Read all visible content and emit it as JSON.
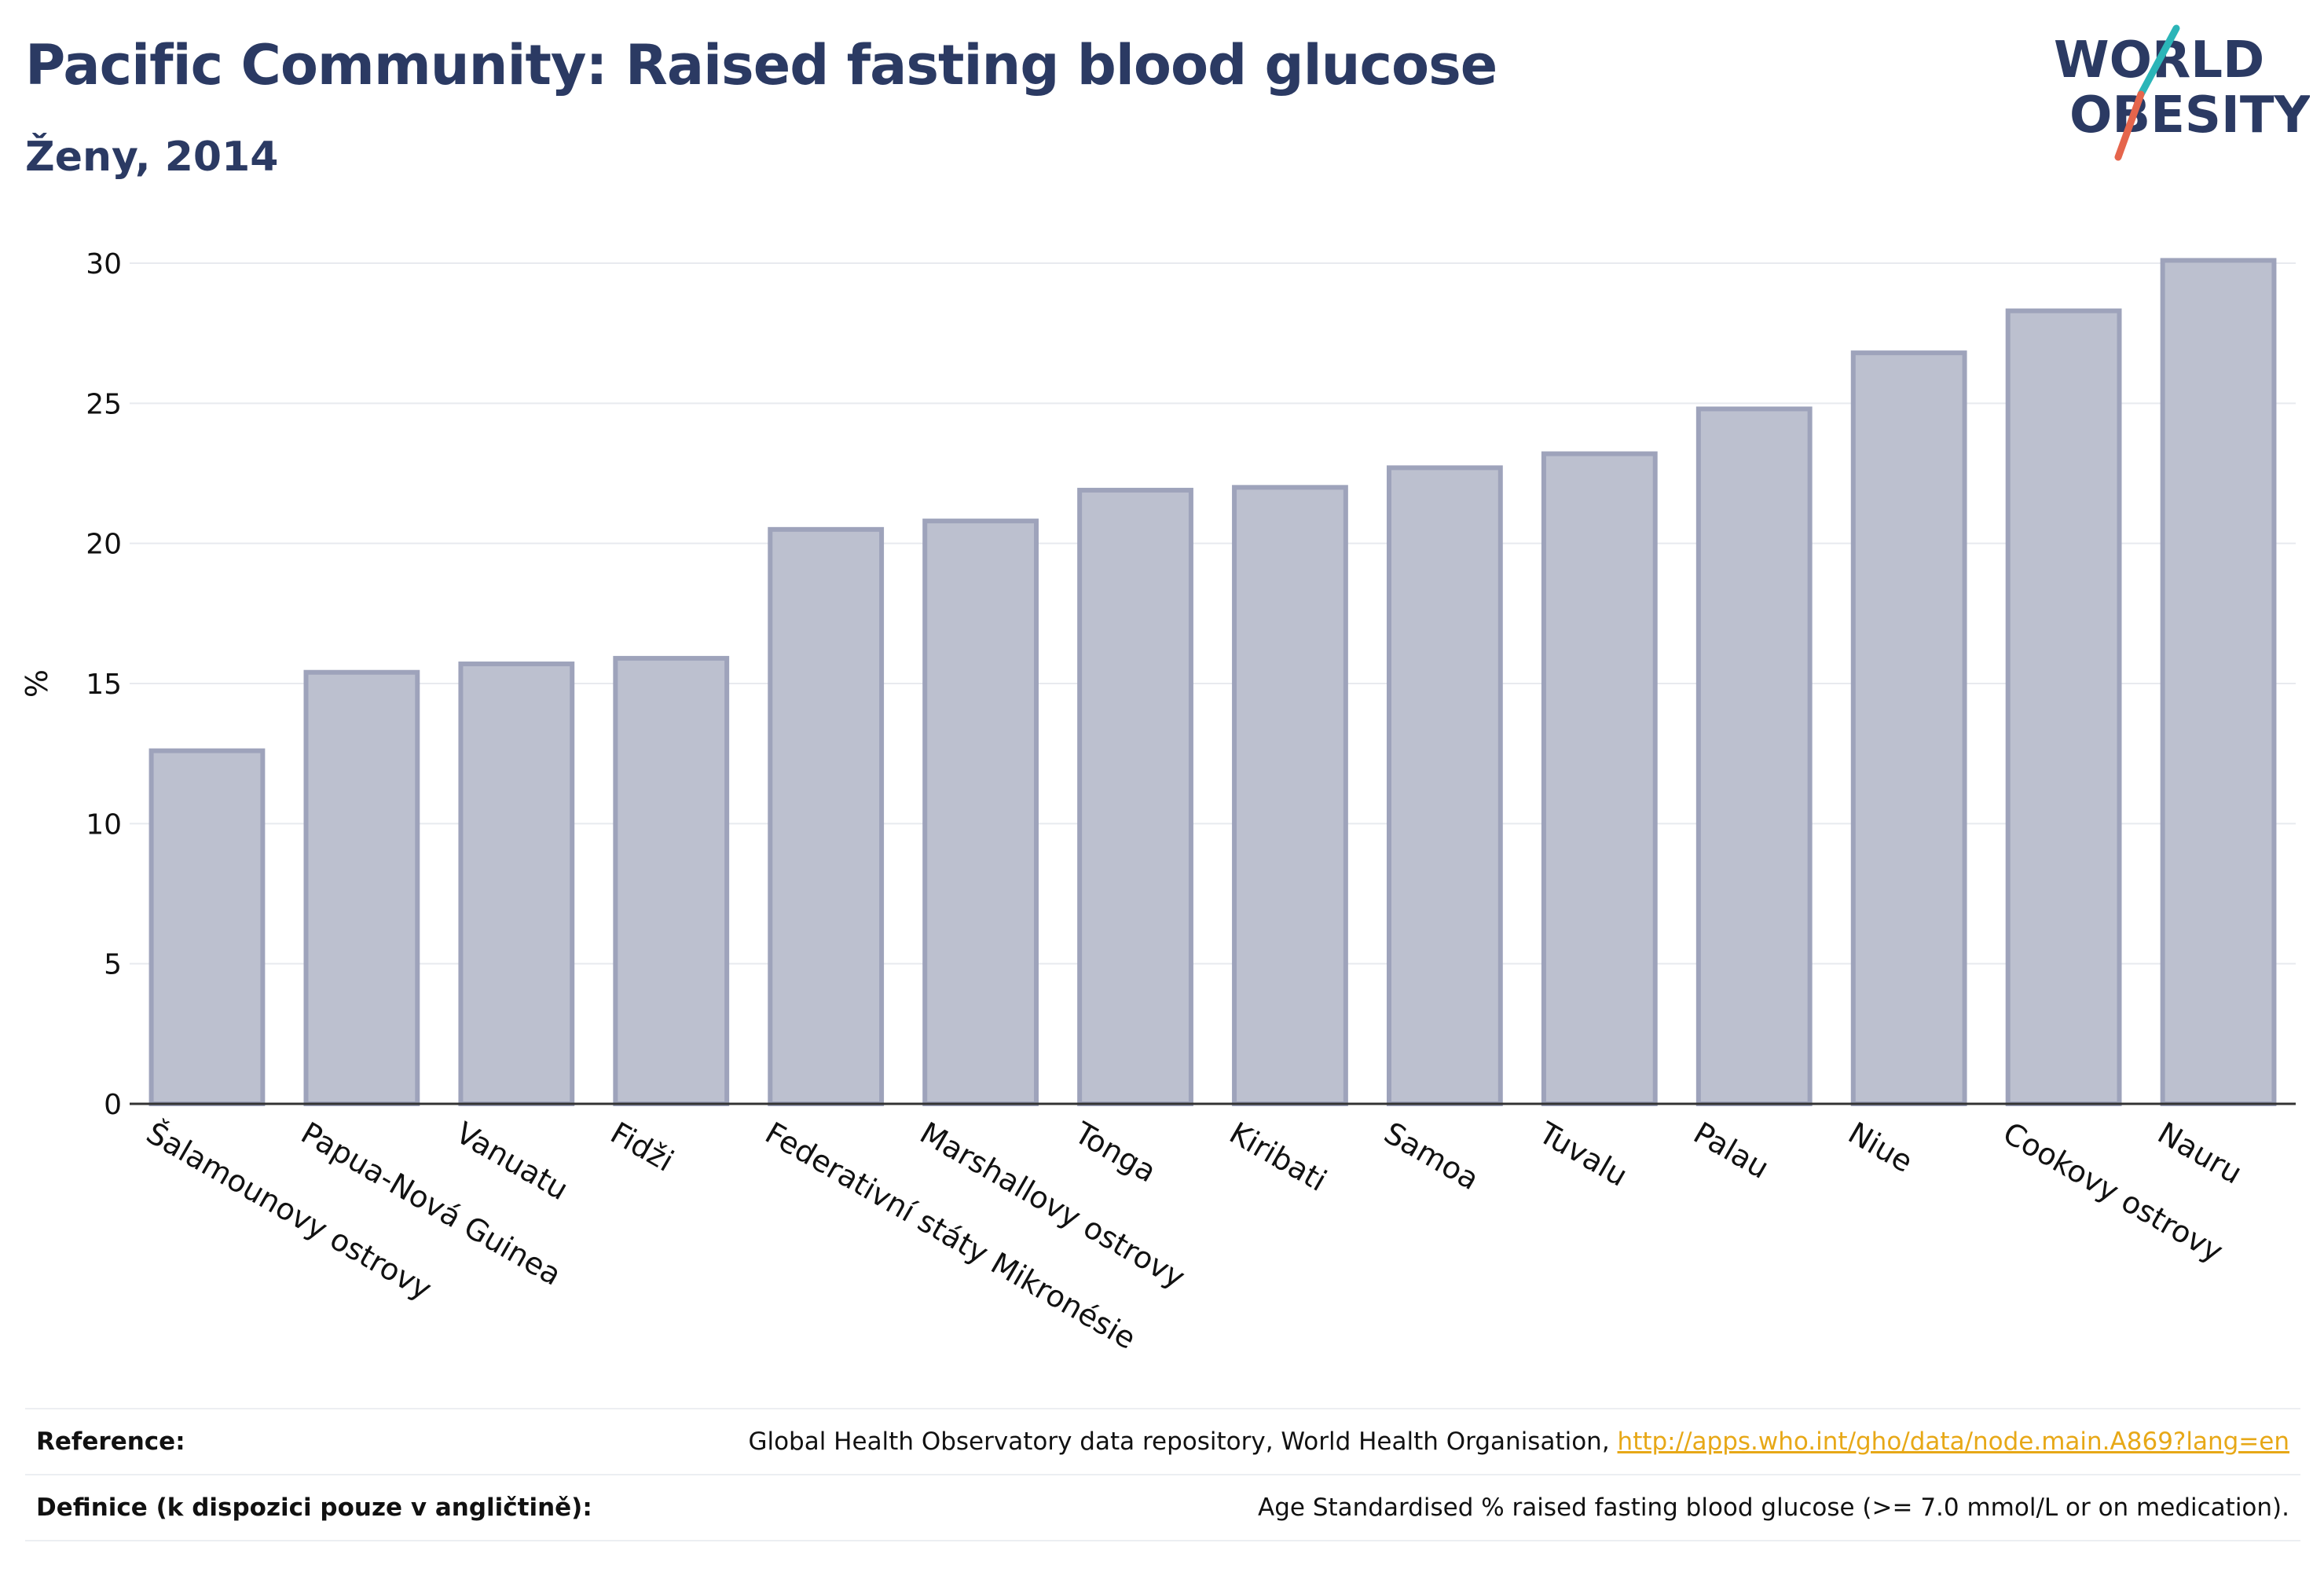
{
  "title": "Pacific Community: Raised fasting blood glucose",
  "subtitle": "Ženy, 2014",
  "logo": {
    "line1": "WORLD",
    "line2": "OBESITY",
    "colors": {
      "text": "#2b3a63",
      "slash_top": "#2bb5b8",
      "slash_bottom": "#e5654c"
    }
  },
  "colors": {
    "bar_fill": "#bcc0cf",
    "bar_stroke": "#9ea3bb",
    "grid": "#e8eaef",
    "axis": "#333333"
  },
  "chart_data": {
    "type": "bar",
    "title": "Pacific Community: Raised fasting blood glucose",
    "subtitle": "Ženy, 2014",
    "xlabel": "",
    "ylabel": "%",
    "ylim": [
      0,
      31
    ],
    "yticks": [
      0,
      5,
      10,
      15,
      20,
      25,
      30
    ],
    "grid": true,
    "categories": [
      "Šalamounovy ostrovy",
      "Papua-Nová Guinea",
      "Vanuatu",
      "Fidži",
      "Federativní státy Mikronésie",
      "Marshallovy ostrovy",
      "Tonga",
      "Kiribati",
      "Samoa",
      "Tuvalu",
      "Palau",
      "Niue",
      "Cookovy ostrovy",
      "Nauru"
    ],
    "values": [
      12.6,
      15.4,
      15.7,
      15.9,
      20.5,
      20.8,
      21.9,
      22.0,
      22.7,
      23.2,
      24.8,
      26.8,
      28.3,
      30.1
    ]
  },
  "reference": {
    "label": "Reference:",
    "text": "Global Health Observatory data repository, World Health Organisation, ",
    "link": "http://apps.who.int/gho/data/node.main.A869?lang=en"
  },
  "definition": {
    "label": "Definice (k dispozici pouze v angličtině):",
    "text": "Age Standardised % raised fasting blood glucose (>= 7.0 mmol/L or on medication)."
  }
}
